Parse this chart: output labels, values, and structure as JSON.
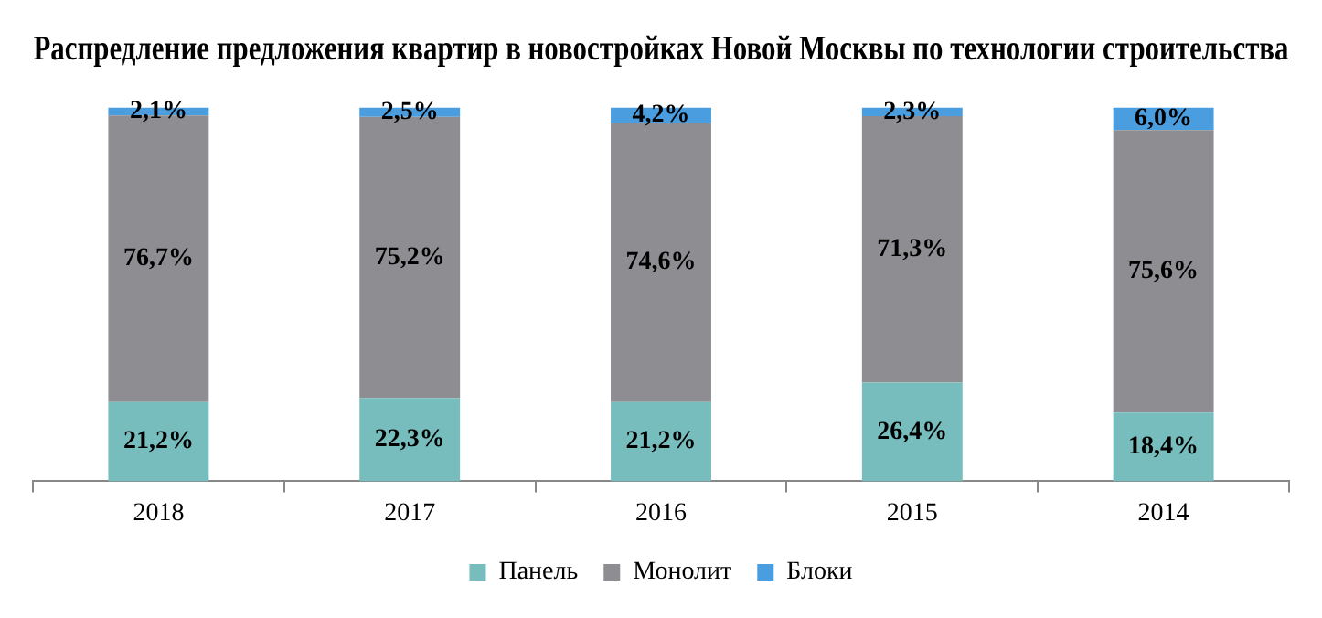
{
  "chart_data": {
    "type": "bar",
    "title": "Распредление предложения квартир в новостройках Новой Москвы по технологии строительства",
    "categories": [
      "2018",
      "2017",
      "2016",
      "2015",
      "2014"
    ],
    "stacked": true,
    "legend": "bottom",
    "grid": false,
    "series": [
      {
        "name": "Панель",
        "color": "#78bdbd",
        "values": [
          21.2,
          22.3,
          21.2,
          26.4,
          18.4
        ],
        "value_labels": [
          "21,2%",
          "22,3%",
          "21,2%",
          "26,4%",
          "18,4%"
        ]
      },
      {
        "name": "Монолит",
        "color": "#8e8e92",
        "values": [
          76.7,
          75.2,
          74.6,
          71.3,
          75.6
        ],
        "value_labels": [
          "76,7%",
          "75,2%",
          "74,6%",
          "71,3%",
          "75,6%"
        ]
      },
      {
        "name": "Блоки",
        "color": "#4a9ee0",
        "values": [
          2.1,
          2.5,
          4.2,
          2.3,
          6.0
        ],
        "value_labels": [
          "2,1%",
          "2,5%",
          "4,2%",
          "2,3%",
          "6,0%"
        ]
      }
    ]
  }
}
